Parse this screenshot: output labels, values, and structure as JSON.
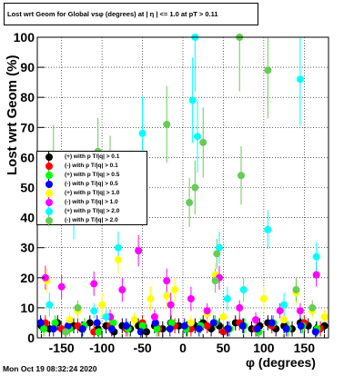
{
  "title": "Lost wrt Geom for Global vsφ (degrees) at | η | <= 1.0 at pT > 0.11",
  "timestamp": "Mon Oct 19 08:32:24 2020",
  "chart_data": {
    "type": "scatter",
    "xlabel": "φ (degrees)",
    "ylabel": "Lost wrt Geom (%)",
    "xlim": [
      -180,
      180
    ],
    "ylim": [
      0,
      100
    ],
    "xticks": [
      -150,
      -100,
      -50,
      0,
      50,
      100,
      150
    ],
    "yticks": [
      0,
      10,
      20,
      30,
      40,
      50,
      60,
      70,
      80,
      90,
      100
    ],
    "grid": true,
    "legend_position": "left-middle",
    "series": [
      {
        "name": "(+) with pT/|q| > 0.1",
        "color": "#000000",
        "points": [
          [
            -175,
            4
          ],
          [
            -165,
            3
          ],
          [
            -155,
            5
          ],
          [
            -145,
            2
          ],
          [
            -135,
            4
          ],
          [
            -125,
            3
          ],
          [
            -115,
            5
          ],
          [
            -105,
            3
          ],
          [
            -95,
            4
          ],
          [
            -85,
            2
          ],
          [
            -75,
            4
          ],
          [
            -65,
            3
          ],
          [
            -55,
            4
          ],
          [
            -45,
            2
          ],
          [
            -35,
            4
          ],
          [
            -25,
            3
          ],
          [
            -15,
            5
          ],
          [
            -5,
            4
          ],
          [
            5,
            3
          ],
          [
            15,
            4
          ],
          [
            25,
            5
          ],
          [
            35,
            3
          ],
          [
            45,
            4
          ],
          [
            55,
            3
          ],
          [
            65,
            5
          ],
          [
            75,
            4
          ],
          [
            85,
            3
          ],
          [
            95,
            4
          ],
          [
            105,
            5
          ],
          [
            115,
            3
          ],
          [
            125,
            4
          ],
          [
            135,
            3
          ],
          [
            145,
            5
          ],
          [
            155,
            4
          ],
          [
            165,
            3
          ],
          [
            175,
            4
          ]
        ]
      },
      {
        "name": "(-) with pT/|q| > 0.1",
        "color": "#ff0000",
        "points": [
          [
            -170,
            5
          ],
          [
            -150,
            3
          ],
          [
            -130,
            4
          ],
          [
            -110,
            2
          ],
          [
            -90,
            4
          ],
          [
            -70,
            3
          ],
          [
            -50,
            5
          ],
          [
            -30,
            3
          ],
          [
            -10,
            4
          ],
          [
            10,
            3
          ],
          [
            30,
            4
          ],
          [
            50,
            2
          ],
          [
            70,
            5
          ],
          [
            90,
            3
          ],
          [
            110,
            4
          ],
          [
            130,
            3
          ],
          [
            150,
            5
          ],
          [
            170,
            3
          ]
        ]
      },
      {
        "name": "(+) with pT/|q| > 0.5",
        "color": "#00ff00",
        "points": [
          [
            -172,
            3
          ],
          [
            -158,
            5
          ],
          [
            -140,
            3
          ],
          [
            -122,
            4
          ],
          [
            -104,
            2
          ],
          [
            -86,
            5
          ],
          [
            -68,
            3
          ],
          [
            -50,
            4
          ],
          [
            -32,
            3
          ],
          [
            -14,
            5
          ],
          [
            4,
            3
          ],
          [
            22,
            4
          ],
          [
            40,
            5
          ],
          [
            58,
            3
          ],
          [
            76,
            4
          ],
          [
            94,
            2
          ],
          [
            112,
            5
          ],
          [
            130,
            3
          ],
          [
            148,
            4
          ],
          [
            166,
            3
          ]
        ]
      },
      {
        "name": "(-) with pT/|q| > 0.5",
        "color": "#0000ff",
        "points": [
          [
            -176,
            5
          ],
          [
            -160,
            3
          ],
          [
            -142,
            4
          ],
          [
            -124,
            3
          ],
          [
            -106,
            5
          ],
          [
            -88,
            3
          ],
          [
            -70,
            4
          ],
          [
            -52,
            2
          ],
          [
            -34,
            5
          ],
          [
            -16,
            3
          ],
          [
            2,
            4
          ],
          [
            20,
            3
          ],
          [
            38,
            5
          ],
          [
            56,
            3
          ],
          [
            74,
            4
          ],
          [
            92,
            3
          ],
          [
            110,
            5
          ],
          [
            128,
            3
          ],
          [
            146,
            4
          ],
          [
            164,
            2
          ]
        ]
      },
      {
        "name": "(+) with pT/|q| > 1.0",
        "color": "#ffff00",
        "points": [
          [
            -168,
            19
          ],
          [
            -140,
            6
          ],
          [
            -130,
            9
          ],
          [
            -100,
            11
          ],
          [
            -80,
            26
          ],
          [
            -60,
            6
          ],
          [
            -40,
            13
          ],
          [
            -20,
            14
          ],
          [
            -10,
            16
          ],
          [
            10,
            5
          ],
          [
            30,
            8
          ],
          [
            40,
            21
          ],
          [
            50,
            7
          ],
          [
            75,
            16
          ],
          [
            100,
            13
          ],
          [
            125,
            6
          ],
          [
            140,
            15
          ],
          [
            160,
            9
          ],
          [
            175,
            7
          ]
        ]
      },
      {
        "name": "(-) with pT/|q| > 1.0",
        "color": "#ff00ff",
        "points": [
          [
            -170,
            20
          ],
          [
            -150,
            17
          ],
          [
            -110,
            18
          ],
          [
            -90,
            7
          ],
          [
            -75,
            16
          ],
          [
            -55,
            29
          ],
          [
            -35,
            7
          ],
          [
            -20,
            19
          ],
          [
            -15,
            11
          ],
          [
            10,
            13
          ],
          [
            30,
            9
          ],
          [
            45,
            20
          ],
          [
            70,
            10
          ],
          [
            90,
            6
          ],
          [
            120,
            9
          ],
          [
            145,
            9
          ],
          [
            165,
            21
          ]
        ]
      },
      {
        "name": "(+) with pT/|q| > 2.0",
        "color": "#00ffff",
        "points": [
          [
            -165,
            11
          ],
          [
            -135,
            40
          ],
          [
            -110,
            9
          ],
          [
            -95,
            7
          ],
          [
            -80,
            30
          ],
          [
            -50,
            68
          ],
          [
            12,
            79
          ],
          [
            15,
            100
          ],
          [
            18,
            67
          ],
          [
            45,
            30
          ],
          [
            55,
            13
          ],
          [
            75,
            16
          ],
          [
            105,
            36
          ],
          [
            125,
            11
          ],
          [
            145,
            86
          ],
          [
            165,
            27
          ]
        ]
      },
      {
        "name": "(-) with pT/|q| > 2.0",
        "color": "#66cc55",
        "points": [
          [
            -160,
            60
          ],
          [
            -145,
            2
          ],
          [
            -130,
            10
          ],
          [
            -105,
            62
          ],
          [
            -90,
            57
          ],
          [
            -20,
            71
          ],
          [
            8,
            45
          ],
          [
            15,
            50
          ],
          [
            25,
            65
          ],
          [
            40,
            19
          ],
          [
            42,
            28
          ],
          [
            70,
            100
          ],
          [
            72,
            54
          ],
          [
            105,
            89
          ],
          [
            140,
            16
          ],
          [
            160,
            10
          ]
        ]
      }
    ]
  },
  "legend": {
    "items": [
      {
        "label": "(+) with p T/|q| > 0.1",
        "color": "#000000"
      },
      {
        "label": "(-) with p T/|q| > 0.1",
        "color": "#ff0000"
      },
      {
        "label": "(+) with p T/|q| > 0.5",
        "color": "#00ff00"
      },
      {
        "label": "(-) with p T/|q| > 0.5",
        "color": "#0000ff"
      },
      {
        "label": "(+) with p T/|q| > 1.0",
        "color": "#ffff00"
      },
      {
        "label": "(-) with p T/|q| > 1.0",
        "color": "#ff00ff"
      },
      {
        "label": "(+) with p T/|q| > 2.0",
        "color": "#00ffff"
      },
      {
        "label": "(-) with p T/|q| > 2.0",
        "color": "#66cc55"
      }
    ]
  }
}
